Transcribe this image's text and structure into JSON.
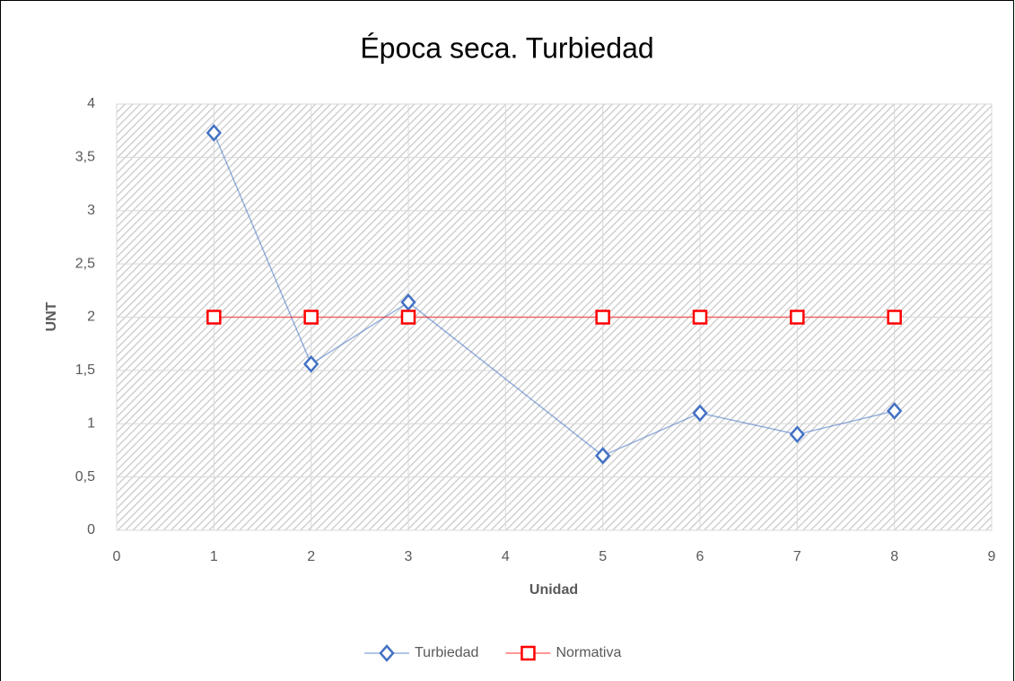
{
  "chart_data": {
    "type": "line",
    "title": "Época seca. Turbiedad",
    "x_label": "Unidad",
    "y_label": "UNT",
    "xlim": [
      0,
      9
    ],
    "xticks": [
      0,
      1,
      2,
      3,
      4,
      5,
      6,
      7,
      8,
      9
    ],
    "ylim": [
      0,
      4
    ],
    "yticks": [
      0,
      {
        "value": 0.5,
        "label": "0,5"
      },
      1,
      {
        "value": 1.5,
        "label": "1,5"
      },
      2,
      {
        "value": 2.5,
        "label": "2,5"
      },
      3,
      {
        "value": 3.5,
        "label": "3,5"
      },
      4
    ],
    "grid": true,
    "legend": "bottom",
    "series": [
      {
        "name": "Turbiedad",
        "color": "#4472c4",
        "marker": "diamond",
        "x": [
          1,
          2,
          3,
          5,
          6,
          7,
          8
        ],
        "values": [
          3.73,
          1.56,
          2.14,
          0.7,
          1.1,
          0.9,
          1.12
        ]
      },
      {
        "name": "Normativa",
        "color": "#ff0000",
        "marker": "square",
        "x": [
          1,
          2,
          3,
          5,
          6,
          7,
          8
        ],
        "values": [
          2,
          2,
          2,
          2,
          2,
          2,
          2
        ]
      }
    ]
  }
}
